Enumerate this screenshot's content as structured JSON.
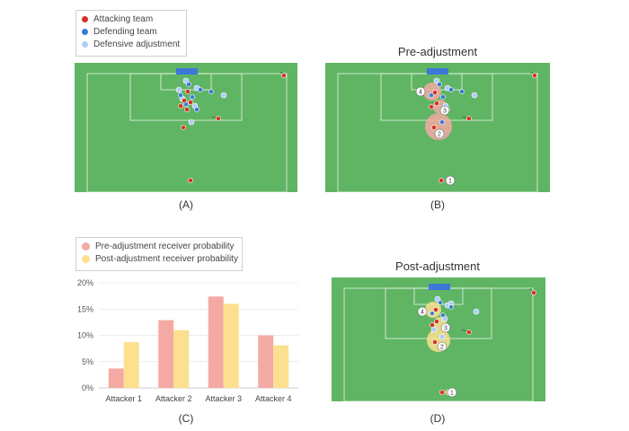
{
  "legend_top": {
    "attacking": "Attacking team",
    "defending": "Defending team",
    "adjustment": "Defensive adjustment"
  },
  "legend_bottom": {
    "pre": "Pre-adjustment receiver probability",
    "post": "Post-adjustment receiver probability"
  },
  "titles": {
    "pre": "Pre-adjustment",
    "post": "Post-adjustment"
  },
  "captions": {
    "a": "(A)",
    "b": "(B)",
    "c": "(C)",
    "d": "(D)"
  },
  "markers": [
    "1",
    "2",
    "3",
    "4"
  ],
  "colors": {
    "attacking": "#d93025",
    "defending": "#3c78d8",
    "adjustment": "#aecbfa",
    "pitch": "#5fb563",
    "pre_bar": "#f4aaa3",
    "post_bar": "#fce08f"
  },
  "chart_data": {
    "type": "bar",
    "categories": [
      "Attacker 1",
      "Attacker 2",
      "Attacker 3",
      "Attacker 4"
    ],
    "series": [
      {
        "name": "Pre-adjustment receiver probability",
        "values": [
          3.7,
          12.9,
          17.4,
          10.0
        ]
      },
      {
        "name": "Post-adjustment receiver probability",
        "values": [
          8.7,
          11.0,
          16.0,
          8.1
        ]
      }
    ],
    "yticks": [
      "0%",
      "5%",
      "10%",
      "15%",
      "20%"
    ],
    "ylim": [
      0,
      20
    ],
    "title": "",
    "xlabel": "",
    "ylabel": ""
  }
}
